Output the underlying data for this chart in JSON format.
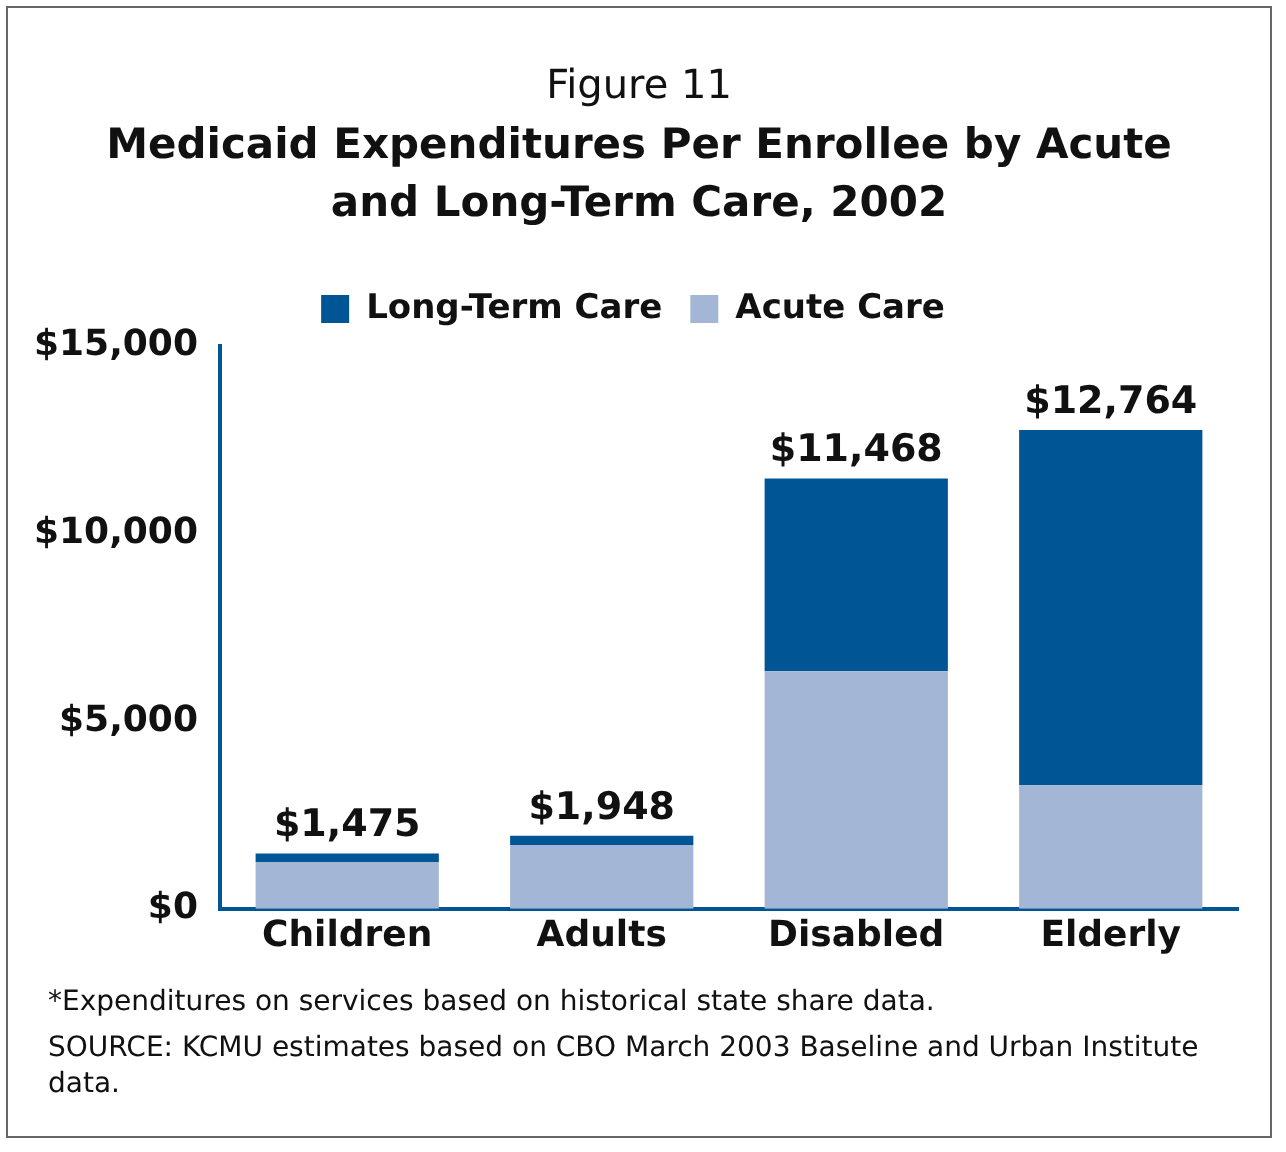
{
  "chart_data": {
    "type": "bar",
    "title": "Figure 11",
    "subtitle": "Medicaid Expenditures Per Enrollee by Acute and Long-Term Care, 2002",
    "categories": [
      "Children",
      "Adults",
      "Disabled",
      "Elderly"
    ],
    "stacked": true,
    "series": [
      {
        "name": "Acute Care",
        "color": "#a4b6d6",
        "values": [
          1250,
          1700,
          6330,
          3290
        ]
      },
      {
        "name": "Long-Term Care",
        "color": "#005595",
        "values": [
          225,
          248,
          5138,
          9474
        ]
      }
    ],
    "totals": [
      "$1,475",
      "$1,948",
      "$11,468",
      "$12,764"
    ],
    "ylim": [
      0,
      15000
    ],
    "yticks": [
      {
        "value": 0,
        "label": "$0"
      },
      {
        "value": 5000,
        "label": "$5,000"
      },
      {
        "value": 10000,
        "label": "$10,000"
      },
      {
        "value": 15000,
        "label": "$15,000"
      }
    ],
    "grid": false,
    "legend": "top",
    "annotations": [
      "*Expenditures on services based on historical state share data.",
      "SOURCE: KCMU estimates based on CBO March 2003 Baseline and Urban Institute data."
    ]
  }
}
